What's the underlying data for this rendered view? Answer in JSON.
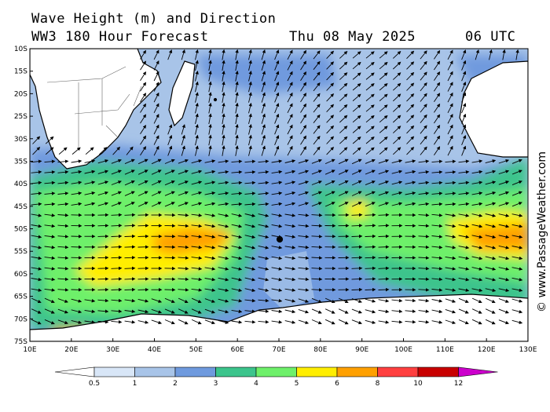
{
  "header": {
    "title_line1": "Wave Height (m) and Direction",
    "title_line2": "WW3 180 Hour Forecast",
    "date": "Thu 08 May 2025",
    "time": "06 UTC"
  },
  "credit": "© www.PassageWeather.com",
  "map": {
    "lon_range": [
      10,
      130
    ],
    "lat_range": [
      -10,
      -75
    ],
    "lat_labels": [
      "10S",
      "15S",
      "20S",
      "25S",
      "30S",
      "35S",
      "40S",
      "45S",
      "50S",
      "55S",
      "60S",
      "65S",
      "70S",
      "75S"
    ],
    "lon_labels": [
      "10E",
      "20E",
      "30E",
      "40E",
      "50E",
      "60E",
      "70E",
      "80E",
      "90E",
      "100E",
      "110E",
      "120E",
      "130E"
    ],
    "land_color": "#ffffff",
    "coast_color": "#000000"
  },
  "colorbar": {
    "labels": [
      "0.5",
      "1",
      "2",
      "3",
      "4",
      "5",
      "6",
      "8",
      "10",
      "12"
    ],
    "colors": [
      "#ffffff",
      "#d8e6f7",
      "#a8c4e8",
      "#6f9ade",
      "#3cc48c",
      "#6ef06a",
      "#ffee00",
      "#ffa000",
      "#ff4040",
      "#c80000",
      "#cc00cc"
    ]
  }
}
